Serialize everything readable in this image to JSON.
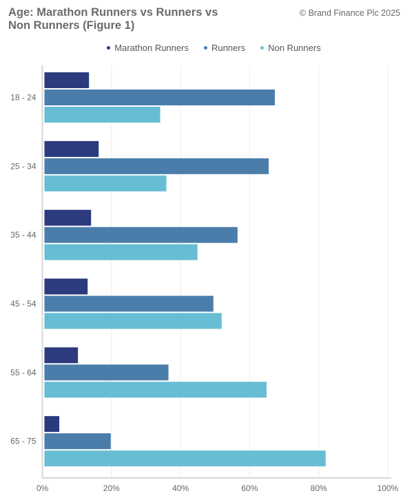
{
  "header": {
    "title": "Age: Marathon Runners vs Runners vs Non Runners (Figure 1)",
    "copyright": "© Brand Finance Plc 2025"
  },
  "chart_data": {
    "type": "bar",
    "orientation": "horizontal",
    "title": "Age: Marathon Runners vs Runners vs Non Runners (Figure 1)",
    "categories": [
      "18 - 24",
      "25 - 34",
      "35 - 44",
      "45 - 54",
      "55 - 64",
      "65 - 75"
    ],
    "series": [
      {
        "name": "Marathon Runners",
        "color": "#2c3a7e",
        "values": [
          13.5,
          16.3,
          14.1,
          13.1,
          10.3,
          4.9
        ]
      },
      {
        "name": "Runners",
        "color": "#4a7daa",
        "values": [
          67.3,
          65.5,
          56.5,
          49.5,
          36.5,
          19.8
        ]
      },
      {
        "name": "Non Runners",
        "color": "#67bdd4",
        "values": [
          34.1,
          35.9,
          44.9,
          51.9,
          64.9,
          82.0
        ]
      }
    ],
    "xlim": [
      0,
      100
    ],
    "x_ticks": [
      "0%",
      "20%",
      "40%",
      "60%",
      "80%",
      "100%"
    ],
    "xlabel": "",
    "ylabel": "",
    "grid": true,
    "legend_position": "top-center"
  }
}
